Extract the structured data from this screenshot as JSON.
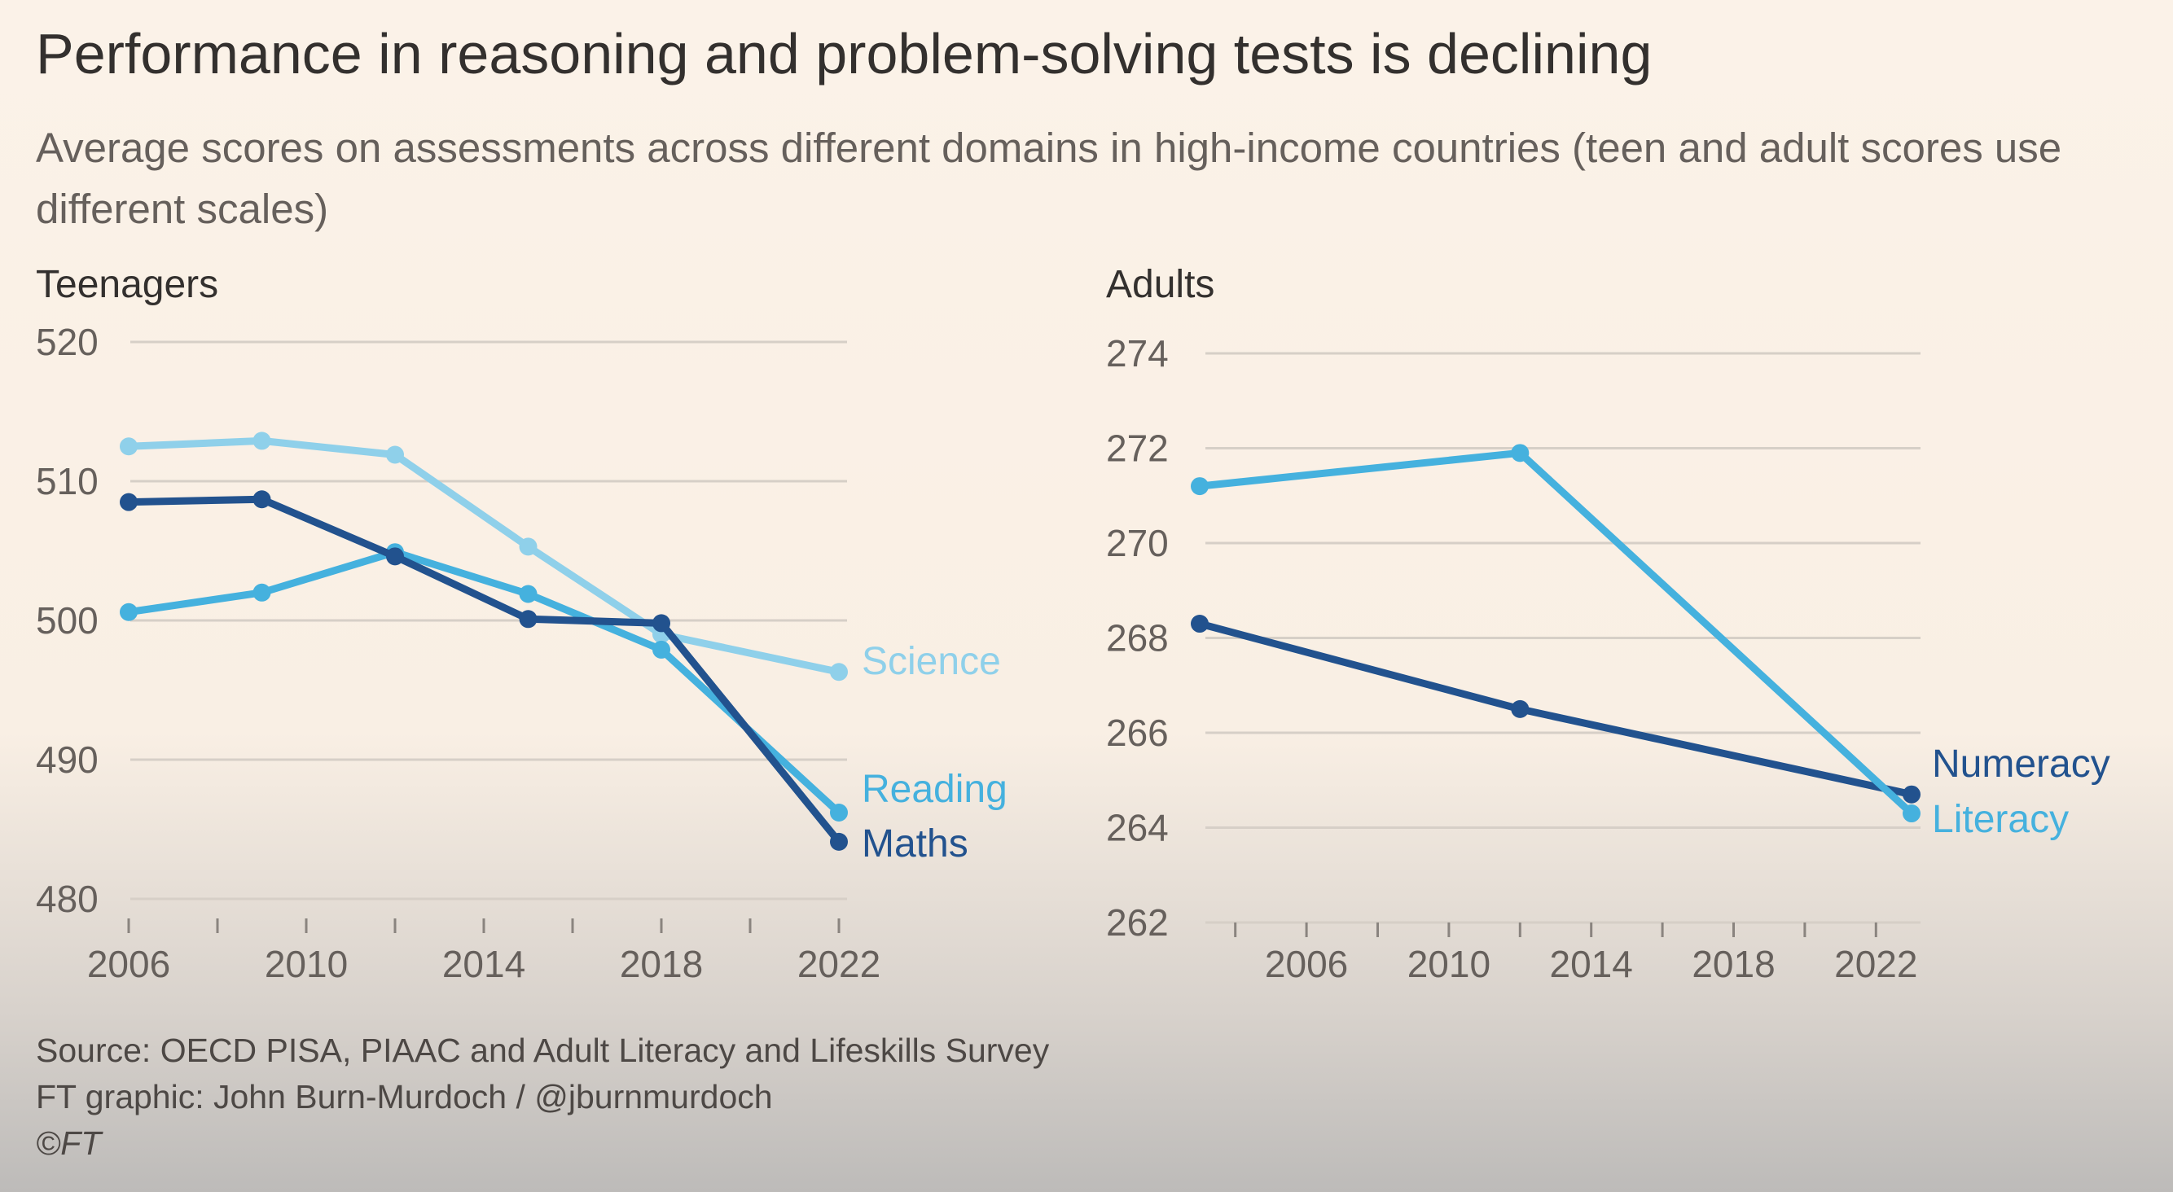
{
  "title": "Performance in reasoning and problem-solving tests is declining",
  "subtitle": "Average scores on assessments across different domains in high-income countries (teen and adult scores use different scales)",
  "footer": {
    "source": "Source: OECD PISA, PIAAC and Adult Literacy and Lifeskills Survey",
    "credit": "FT graphic: John Burn-Murdoch / @jburnmurdoch",
    "copyright": "©FT"
  },
  "colors": {
    "science": "#8fd0ea",
    "reading": "#45b1de",
    "maths": "#22528e",
    "numeracy": "#22528e",
    "literacy": "#45b1de",
    "grid": "#d6cfc7"
  },
  "chart_data": [
    {
      "type": "line",
      "title": "Teenagers",
      "xlabel": "",
      "ylabel": "",
      "xlim": [
        2006,
        2022
      ],
      "ylim": [
        480,
        520
      ],
      "yticks": [
        480,
        490,
        500,
        510,
        520
      ],
      "xticks": [
        2006,
        2010,
        2014,
        2018,
        2022
      ],
      "xminor": [
        2006,
        2008,
        2010,
        2012,
        2014,
        2016,
        2018,
        2020,
        2022
      ],
      "grid": true,
      "series": [
        {
          "name": "Science",
          "color": "#8fd0ea",
          "x": [
            2006,
            2009,
            2012,
            2015,
            2018,
            2022
          ],
          "y": [
            512.5,
            512.9,
            511.9,
            505.3,
            499.0,
            496.3
          ]
        },
        {
          "name": "Reading",
          "color": "#45b1de",
          "x": [
            2006,
            2009,
            2012,
            2015,
            2018,
            2022
          ],
          "y": [
            500.6,
            502.0,
            504.9,
            501.9,
            497.9,
            486.2
          ]
        },
        {
          "name": "Maths",
          "color": "#22528e",
          "x": [
            2006,
            2009,
            2012,
            2015,
            2018,
            2022
          ],
          "y": [
            508.5,
            508.7,
            504.6,
            500.1,
            499.8,
            484.1
          ]
        }
      ]
    },
    {
      "type": "line",
      "title": "Adults",
      "xlabel": "",
      "ylabel": "",
      "xlim": [
        2003,
        2023
      ],
      "ylim": [
        262,
        274
      ],
      "yticks": [
        262,
        264,
        266,
        268,
        270,
        272,
        274
      ],
      "xticks": [
        2006,
        2010,
        2014,
        2018,
        2022
      ],
      "xminor": [
        2004,
        2006,
        2008,
        2010,
        2012,
        2014,
        2016,
        2018,
        2020,
        2022
      ],
      "grid": true,
      "series": [
        {
          "name": "Numeracy",
          "color": "#22528e",
          "x": [
            2003,
            2012,
            2023
          ],
          "y": [
            268.3,
            266.5,
            264.7
          ]
        },
        {
          "name": "Literacy",
          "color": "#45b1de",
          "x": [
            2003,
            2012,
            2023
          ],
          "y": [
            271.2,
            271.9,
            264.3
          ]
        }
      ]
    }
  ]
}
